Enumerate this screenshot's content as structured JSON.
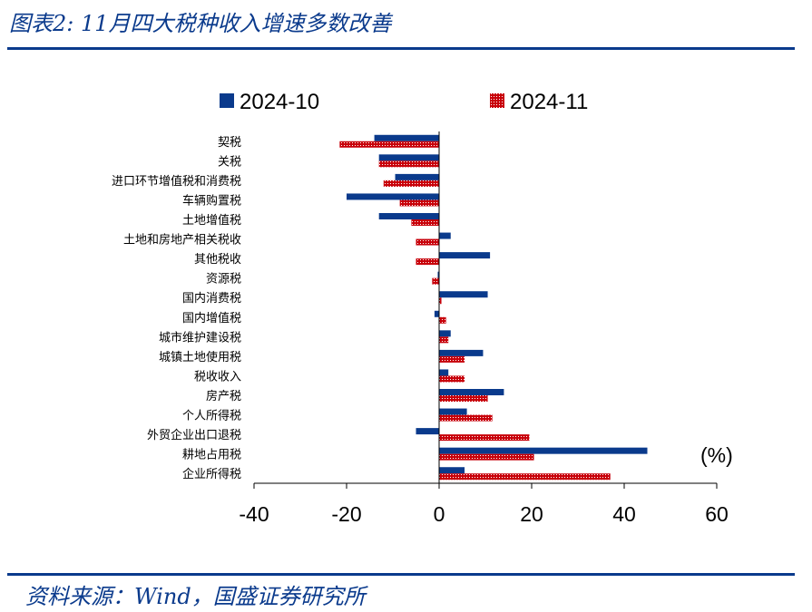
{
  "header": {
    "title": "图表2:  11月四大税种收入增速多数改善"
  },
  "footer": {
    "source": "资料来源：Wind，国盛证券研究所"
  },
  "colors": {
    "accent": "#0a3a8c",
    "series1": "#0a3a8c",
    "series2": "#c8000a"
  },
  "chart_data": {
    "type": "bar",
    "orientation": "horizontal",
    "unit": "(%)",
    "categories": [
      "契税",
      "关税",
      "进口环节增值税和消费税",
      "车辆购置税",
      "土地增值税",
      "土地和房地产相关税收",
      "其他税收",
      "资源税",
      "国内消费税",
      "国内增值税",
      "城市维护建设税",
      "城镇土地使用税",
      "税收收入",
      "房产税",
      "个人所得税",
      "外贸企业出口退税",
      "耕地占用税",
      "企业所得税"
    ],
    "series": [
      {
        "name": "2024-10",
        "values": [
          -14,
          -13,
          -9.5,
          -20,
          -13,
          2.5,
          11,
          -0.3,
          10.5,
          -1,
          2.5,
          9.5,
          2,
          14,
          6,
          -5,
          45,
          5.5
        ]
      },
      {
        "name": "2024-11",
        "values": [
          -21.5,
          -13,
          -12,
          -8.5,
          -6,
          -5,
          -5,
          -1.5,
          0.5,
          1.5,
          2,
          5.5,
          5.5,
          10.5,
          11.5,
          19.5,
          20.5,
          37
        ]
      }
    ],
    "xlim": [
      -40,
      60
    ],
    "xticks": [
      "-40",
      "-20",
      "0",
      "20",
      "40",
      "60"
    ],
    "legend": "top"
  }
}
